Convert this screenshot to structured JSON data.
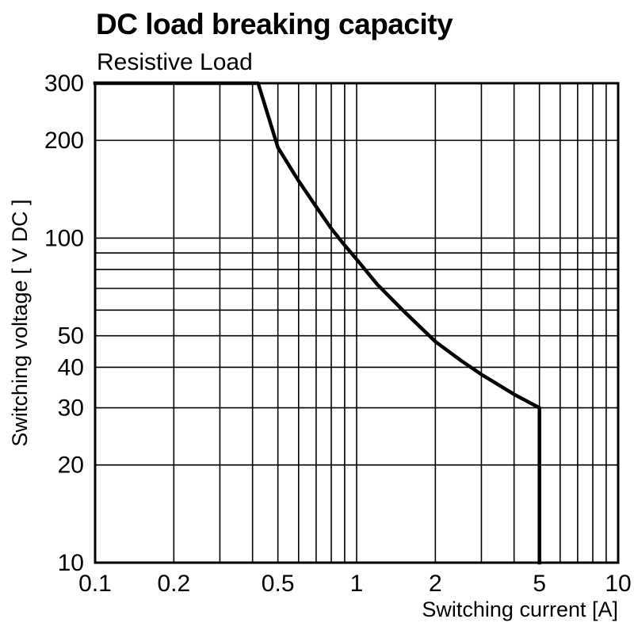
{
  "colors": {
    "background": "#ffffff",
    "line": "#000000",
    "grid": "#000000",
    "frame": "#000000",
    "text": "#000000"
  },
  "chart_data": {
    "type": "line",
    "title": "DC load breaking capacity",
    "subtitle": "Resistive Load",
    "xlabel": "Switching current [A]",
    "ylabel": "Switching voltage [ V DC ]",
    "xscale": "log",
    "yscale": "log",
    "xlim": [
      0.1,
      10
    ],
    "ylim": [
      10,
      300
    ],
    "grid": true,
    "legend": "none",
    "x_ticks": [
      {
        "v": 0.1,
        "label": "0.1"
      },
      {
        "v": 0.2,
        "label": "0.2"
      },
      {
        "v": 0.5,
        "label": "0.5"
      },
      {
        "v": 1,
        "label": "1"
      },
      {
        "v": 2,
        "label": "2"
      },
      {
        "v": 5,
        "label": "5"
      },
      {
        "v": 10,
        "label": "10"
      }
    ],
    "y_ticks": [
      {
        "v": 300,
        "label": "300"
      },
      {
        "v": 200,
        "label": "200"
      },
      {
        "v": 100,
        "label": "100"
      },
      {
        "v": 50,
        "label": "50"
      },
      {
        "v": 40,
        "label": "40"
      },
      {
        "v": 30,
        "label": "30"
      },
      {
        "v": 20,
        "label": "20"
      },
      {
        "v": 10,
        "label": "10"
      }
    ],
    "x_gridlines": [
      0.2,
      0.3,
      0.4,
      0.5,
      0.6,
      0.7,
      0.8,
      0.9,
      1,
      2,
      3,
      4,
      5,
      6,
      7,
      8,
      9
    ],
    "y_gridlines": [
      20,
      30,
      40,
      50,
      60,
      70,
      80,
      90,
      100,
      200
    ],
    "series": [
      {
        "name": "Resistive Load",
        "points": [
          [
            0.1,
            300
          ],
          [
            0.42,
            300
          ],
          [
            0.5,
            190
          ],
          [
            0.6,
            150
          ],
          [
            0.7,
            125
          ],
          [
            0.8,
            107
          ],
          [
            0.9,
            95
          ],
          [
            1.0,
            86
          ],
          [
            1.2,
            72
          ],
          [
            1.5,
            60
          ],
          [
            2.0,
            48
          ],
          [
            2.5,
            42
          ],
          [
            3.0,
            38
          ],
          [
            4.0,
            33
          ],
          [
            5.0,
            30
          ],
          [
            5.0,
            10
          ]
        ]
      }
    ]
  }
}
